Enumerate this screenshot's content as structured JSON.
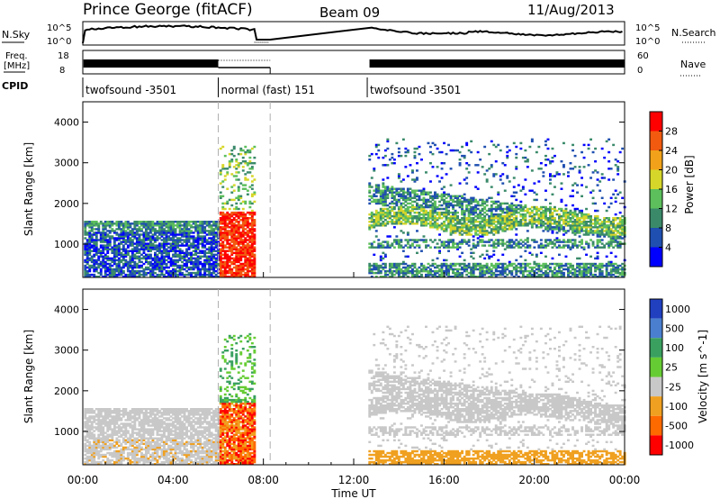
{
  "header": {
    "station": "Prince George (fitACF)",
    "beam": "Beam 09",
    "date": "11/Aug/2013"
  },
  "colors": {
    "axis": "#000000",
    "dashed_marker": "#b0b0b0",
    "power_scale": [
      "#0000ff",
      "#1f4fb0",
      "#3a8a6a",
      "#5cbf5c",
      "#d6d62a",
      "#f2a21a",
      "#f25a10",
      "#ff0000"
    ],
    "velocity_scale": [
      "#2040c0",
      "#4a7fd0",
      "#3aa060",
      "#66cc33",
      "#c8c8c8",
      "#f0a020",
      "#ff6a00",
      "#ff0000"
    ]
  },
  "top_panels": {
    "nsky": {
      "left_label": "N.Sky",
      "left_ticks": [
        "10^5",
        "10^0"
      ],
      "right_ticks": [
        "10^5",
        "10^0"
      ],
      "right_label": "N.Search"
    },
    "freq": {
      "left_label_1": "Freq.",
      "left_label_2": "[MHz]",
      "left_ticks": [
        "18",
        "8"
      ],
      "right_ticks": [
        "60",
        "0"
      ],
      "right_label": "Nave"
    },
    "cpid": {
      "label": "CPID",
      "segments": [
        {
          "start_hour": 0,
          "end_hour": 6.0,
          "text": "twofsound -3501"
        },
        {
          "start_hour": 6.0,
          "end_hour": 12.6,
          "text": "normal (fast) 151"
        },
        {
          "start_hour": 12.6,
          "end_hour": 24,
          "text": "twofsound -3501"
        }
      ]
    }
  },
  "chart_data": [
    {
      "type": "heatmap",
      "name": "Power",
      "ylabel": "Slant Range [km]",
      "x_range_hours": [
        0,
        24
      ],
      "ylim": [
        180,
        4500
      ],
      "yticks": [
        1000,
        2000,
        3000,
        4000
      ],
      "colorbar": {
        "label": "Power [dB]",
        "range": [
          0,
          32
        ],
        "ticks": [
          4,
          8,
          12,
          16,
          20,
          24,
          28
        ]
      },
      "marker_hours": [
        6.0,
        8.3
      ]
    },
    {
      "type": "heatmap",
      "name": "Velocity",
      "ylabel": "Slant Range [km]",
      "x_range_hours": [
        0,
        24
      ],
      "ylim": [
        180,
        4500
      ],
      "yticks": [
        1000,
        2000,
        3000,
        4000
      ],
      "colorbar": {
        "label": "Velocity [m s^-1]",
        "ticks": [
          "1000",
          "500",
          "100",
          "25",
          "-25",
          "-100",
          "-500",
          "-1000"
        ]
      },
      "marker_hours": [
        6.0,
        8.3
      ]
    }
  ],
  "xaxis": {
    "ticks": [
      "00:00",
      "04:00",
      "08:00",
      "12:00",
      "16:00",
      "20:00",
      "00:00"
    ],
    "tick_hours": [
      0,
      4,
      8,
      12,
      16,
      20,
      24
    ],
    "label": "Time UT"
  }
}
